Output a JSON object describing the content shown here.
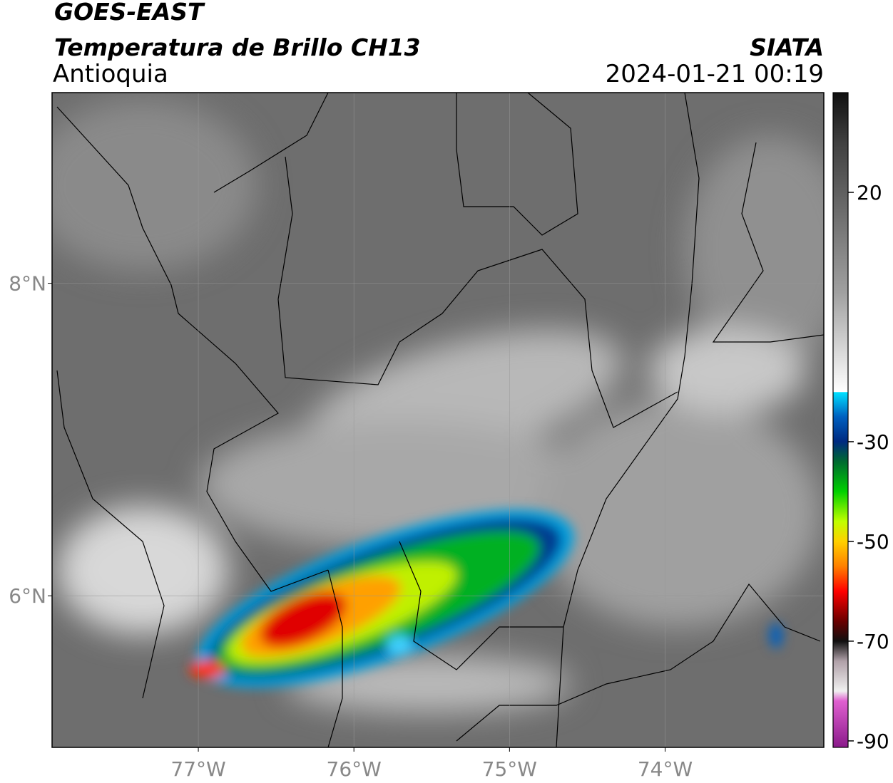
{
  "header": {
    "line1": "GOES-EAST",
    "line2": "Temperatura de Brillo CH13",
    "region": "Antioquia",
    "source": "SIATA",
    "datetime": "2024-01-21 00:19"
  },
  "map": {
    "xlim": [
      -77.94,
      -72.98
    ],
    "ylim": [
      5.03,
      9.22
    ],
    "xticks": [
      {
        "value": -77,
        "label": "77°W"
      },
      {
        "value": -76,
        "label": "76°W"
      },
      {
        "value": -75,
        "label": "75°W"
      },
      {
        "value": -74,
        "label": "74°W"
      }
    ],
    "yticks": [
      {
        "value": 6,
        "label": "6°N"
      },
      {
        "value": 8,
        "label": "8°N"
      }
    ],
    "grid": true
  },
  "colorbar": {
    "lim": [
      -91.3,
      40
    ],
    "ticks": [
      -90,
      -70,
      -50,
      -30,
      20
    ],
    "stops": [
      [
        -91.3,
        "#8a1a8a"
      ],
      [
        -82,
        "#e060d0"
      ],
      [
        -80,
        "#f0f0f0"
      ],
      [
        -74,
        "#b0a0a8"
      ],
      [
        -70,
        "#101010"
      ],
      [
        -66,
        "#6a0000"
      ],
      [
        -60,
        "#ff0000"
      ],
      [
        -55,
        "#ff8000"
      ],
      [
        -50,
        "#ffd000"
      ],
      [
        -46,
        "#c0ff00"
      ],
      [
        -40,
        "#00d000"
      ],
      [
        -34,
        "#006a30"
      ],
      [
        -30,
        "#002a80"
      ],
      [
        -25,
        "#0060c0"
      ],
      [
        -20.1,
        "#00e0ff"
      ],
      [
        -20,
        "#ffffff"
      ],
      [
        0,
        "#a0a0a0"
      ],
      [
        30,
        "#404040"
      ],
      [
        40,
        "#101010"
      ]
    ]
  }
}
